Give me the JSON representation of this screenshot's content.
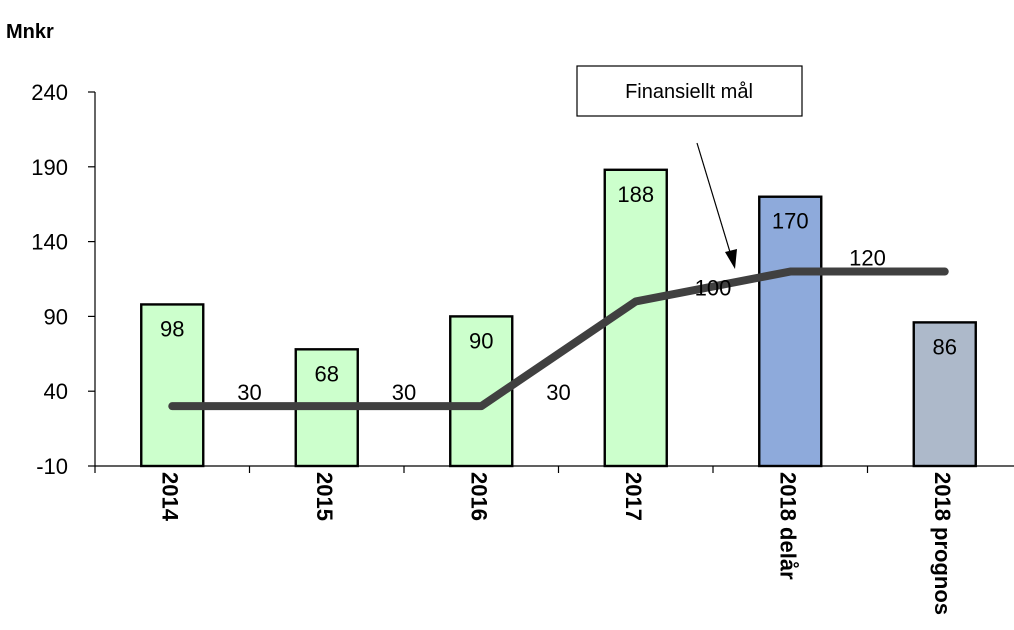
{
  "chart_data": {
    "type": "bar",
    "ylabel": "Mnkr",
    "ylim": [
      -10,
      240
    ],
    "yticks": [
      -10,
      40,
      90,
      140,
      190,
      240
    ],
    "grid": false,
    "categories": [
      "2014",
      "2015",
      "2016",
      "2017",
      "2018 delår",
      "2018 prognos"
    ],
    "series": [
      {
        "values": [
          98,
          68,
          90,
          188,
          170,
          86
        ],
        "colors": [
          "#ccffcc",
          "#ccffcc",
          "#ccffcc",
          "#ccffcc",
          "#8eaadb",
          "#adb9ca"
        ]
      },
      {
        "name": "Finansiellt mål",
        "type": "line",
        "color": "#404040",
        "values": [
          30,
          30,
          30,
          100,
          120,
          120
        ],
        "labels": [
          "30",
          "30",
          "30",
          "100",
          "120",
          ""
        ]
      }
    ],
    "annotation": "Finansiellt mål"
  }
}
